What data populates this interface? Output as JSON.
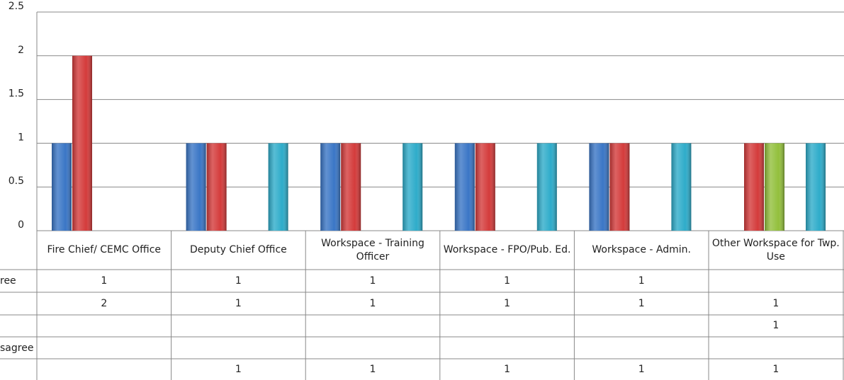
{
  "chart_data": {
    "type": "bar",
    "categories": [
      "Fire Chief/ CEMC Office",
      "Deputy Chief Office",
      "Workspace - Training Officer",
      "Workspace - FPO/Pub. Ed.",
      "Workspace - Admin.",
      "Other Workspace for Twp. Use"
    ],
    "series": [
      {
        "name": "ree",
        "color": "#3a76c6",
        "values": [
          1,
          1,
          1,
          1,
          1,
          null
        ]
      },
      {
        "color": "#d43b3b",
        "values": [
          2,
          1,
          1,
          1,
          1,
          1
        ]
      },
      {
        "color": "#93c03c",
        "values": [
          null,
          null,
          null,
          null,
          null,
          1
        ]
      },
      {
        "name": "sagree",
        "color": "#7a5aa8",
        "values": [
          null,
          null,
          null,
          null,
          null,
          null
        ]
      },
      {
        "color": "#2eacca",
        "values": [
          null,
          1,
          1,
          1,
          1,
          1
        ]
      }
    ],
    "ylim": [
      0,
      2.5
    ],
    "yticks": [
      0,
      0.5,
      1,
      1.5,
      2,
      2.5
    ],
    "grid": true
  }
}
